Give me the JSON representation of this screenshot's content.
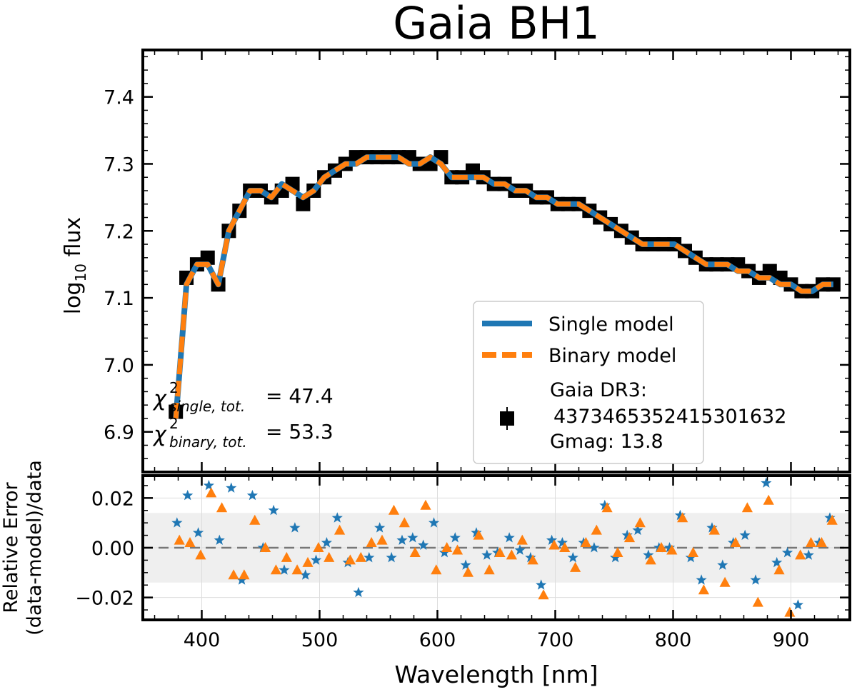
{
  "chart_data": [
    {
      "type": "line",
      "title": "Gaia BH1",
      "ylabel_main": "log",
      "ylabel_sub": "10",
      "ylabel_rest": " flux",
      "xlim": [
        350,
        950
      ],
      "ylim": [
        6.84,
        7.47
      ],
      "yticks": [
        6.9,
        7.0,
        7.1,
        7.2,
        7.3,
        7.4
      ],
      "ytick_labels": [
        "6.9",
        "7.0",
        "7.1",
        "7.2",
        "7.3",
        "7.4"
      ],
      "xticks": [
        400,
        500,
        600,
        700,
        800,
        900
      ],
      "legend_position": "lower right",
      "legend": {
        "single": "Single model",
        "binary": "Binary model",
        "data_line1": "Gaia DR3:",
        "data_line2": "4373465352415301632",
        "data_line3": "Gmag: 13.8"
      },
      "annotations": {
        "chi_single_sub": "single, tot.",
        "chi_single_val": "= 47.4",
        "chi_binary_sub": "binary, tot.",
        "chi_binary_val": "= 53.3"
      },
      "x": [
        378,
        387,
        396,
        405,
        414,
        423,
        432,
        441,
        450,
        459,
        468,
        477,
        486,
        495,
        504,
        513,
        522,
        531,
        540,
        549,
        558,
        567,
        576,
        585,
        594,
        603,
        612,
        621,
        630,
        639,
        648,
        657,
        666,
        675,
        684,
        693,
        702,
        711,
        720,
        729,
        738,
        747,
        756,
        765,
        774,
        783,
        792,
        801,
        810,
        819,
        828,
        837,
        846,
        855,
        864,
        873,
        882,
        891,
        900,
        909,
        918,
        927,
        936
      ],
      "series": [
        {
          "name": "Gaia DR3 data",
          "values": [
            6.93,
            7.13,
            7.15,
            7.16,
            7.12,
            7.2,
            7.23,
            7.26,
            7.26,
            7.25,
            7.26,
            7.27,
            7.24,
            7.26,
            7.28,
            7.29,
            7.3,
            7.31,
            7.31,
            7.31,
            7.31,
            7.31,
            7.31,
            7.3,
            7.3,
            7.31,
            7.28,
            7.28,
            7.29,
            7.28,
            7.27,
            7.27,
            7.26,
            7.26,
            7.25,
            7.25,
            7.24,
            7.24,
            7.24,
            7.23,
            7.22,
            7.21,
            7.2,
            7.19,
            7.18,
            7.18,
            7.18,
            7.18,
            7.17,
            7.16,
            7.15,
            7.15,
            7.15,
            7.15,
            7.14,
            7.13,
            7.14,
            7.13,
            7.12,
            7.11,
            7.11,
            7.12,
            7.12
          ]
        },
        {
          "name": "Single model",
          "values": [
            6.92,
            7.12,
            7.15,
            7.15,
            7.12,
            7.2,
            7.23,
            7.26,
            7.26,
            7.25,
            7.27,
            7.26,
            7.25,
            7.26,
            7.28,
            7.29,
            7.3,
            7.3,
            7.31,
            7.31,
            7.31,
            7.31,
            7.3,
            7.3,
            7.31,
            7.3,
            7.28,
            7.28,
            7.28,
            7.28,
            7.27,
            7.27,
            7.26,
            7.26,
            7.25,
            7.25,
            7.24,
            7.24,
            7.24,
            7.23,
            7.22,
            7.21,
            7.2,
            7.19,
            7.18,
            7.18,
            7.18,
            7.18,
            7.17,
            7.16,
            7.15,
            7.15,
            7.15,
            7.14,
            7.14,
            7.13,
            7.13,
            7.12,
            7.12,
            7.11,
            7.11,
            7.12,
            7.12
          ]
        },
        {
          "name": "Binary model",
          "values": [
            6.92,
            7.12,
            7.15,
            7.15,
            7.12,
            7.2,
            7.23,
            7.26,
            7.26,
            7.25,
            7.27,
            7.26,
            7.25,
            7.26,
            7.28,
            7.29,
            7.3,
            7.3,
            7.31,
            7.31,
            7.31,
            7.31,
            7.3,
            7.3,
            7.31,
            7.3,
            7.28,
            7.28,
            7.28,
            7.28,
            7.27,
            7.27,
            7.26,
            7.26,
            7.25,
            7.25,
            7.24,
            7.24,
            7.24,
            7.23,
            7.22,
            7.21,
            7.2,
            7.19,
            7.18,
            7.18,
            7.18,
            7.18,
            7.17,
            7.16,
            7.15,
            7.15,
            7.15,
            7.14,
            7.14,
            7.13,
            7.13,
            7.12,
            7.12,
            7.11,
            7.11,
            7.12,
            7.12
          ]
        }
      ]
    },
    {
      "type": "scatter",
      "xlabel": "Wavelength [nm]",
      "ylabel_line1": "Relative Error",
      "ylabel_line2": "(data-model)/data",
      "xlim": [
        350,
        950
      ],
      "ylim": [
        -0.029,
        0.029
      ],
      "yticks": [
        -0.02,
        0.0,
        0.02
      ],
      "ytick_labels": [
        "−0.02",
        "0.00",
        "0.02"
      ],
      "xticks": [
        400,
        500,
        600,
        700,
        800,
        900
      ],
      "xtick_labels": [
        "400",
        "500",
        "600",
        "700",
        "800",
        "900"
      ],
      "shaded_band": [
        -0.014,
        0.014
      ],
      "zero_line": 0.0,
      "series": [
        {
          "name": "Single model",
          "marker": "star",
          "x": [
            379,
            388,
            397,
            406,
            415,
            425,
            434,
            443,
            452,
            461,
            470,
            479,
            488,
            497,
            506,
            515,
            524,
            533,
            542,
            551,
            561,
            570,
            579,
            588,
            597,
            606,
            615,
            624,
            633,
            642,
            651,
            661,
            670,
            679,
            688,
            697,
            706,
            715,
            724,
            733,
            742,
            751,
            761,
            770,
            779,
            788,
            797,
            806,
            815,
            824,
            833,
            842,
            851,
            861,
            870,
            879,
            888,
            897,
            906,
            915,
            924,
            933
          ],
          "values": [
            0.01,
            0.021,
            0.006,
            0.025,
            0.003,
            0.024,
            -0.013,
            0.021,
            0.0,
            0.015,
            -0.009,
            0.008,
            -0.011,
            -0.005,
            0.002,
            0.012,
            -0.006,
            -0.018,
            -0.004,
            0.008,
            -0.004,
            0.003,
            0.004,
            0.001,
            0.01,
            -0.002,
            0.004,
            -0.007,
            0.006,
            -0.003,
            -0.002,
            0.004,
            -0.001,
            -0.004,
            -0.015,
            0.003,
            0.002,
            -0.004,
            0.002,
            0.0,
            0.017,
            -0.004,
            0.005,
            0.007,
            -0.003,
            0.0,
            0.0,
            0.013,
            -0.004,
            -0.013,
            0.008,
            -0.007,
            0.002,
            0.005,
            -0.013,
            0.026,
            -0.006,
            -0.002,
            -0.023,
            -0.003,
            0.002,
            0.012
          ]
        },
        {
          "name": "Binary model",
          "marker": "triangle",
          "x": [
            381,
            390,
            399,
            408,
            417,
            427,
            436,
            445,
            454,
            463,
            472,
            481,
            490,
            499,
            508,
            517,
            526,
            535,
            544,
            553,
            563,
            572,
            581,
            590,
            599,
            608,
            617,
            626,
            635,
            644,
            653,
            663,
            672,
            681,
            690,
            699,
            708,
            717,
            726,
            735,
            744,
            753,
            763,
            772,
            781,
            790,
            799,
            808,
            817,
            826,
            835,
            844,
            853,
            863,
            872,
            881,
            890,
            899,
            908,
            917,
            926,
            935
          ],
          "values": [
            0.003,
            0.002,
            -0.003,
            0.022,
            0.016,
            -0.011,
            -0.011,
            0.011,
            0.0,
            -0.009,
            -0.004,
            -0.009,
            -0.006,
            0.0,
            -0.004,
            0.007,
            -0.005,
            -0.004,
            0.002,
            0.003,
            0.015,
            0.01,
            -0.002,
            0.017,
            -0.009,
            0.0,
            -0.001,
            -0.01,
            0.005,
            -0.009,
            -0.002,
            -0.003,
            0.003,
            -0.005,
            -0.019,
            0.001,
            0.0,
            -0.008,
            0.002,
            0.007,
            0.016,
            -0.002,
            0.004,
            0.01,
            -0.005,
            0.0,
            -0.001,
            0.012,
            -0.002,
            -0.017,
            0.007,
            -0.014,
            0.002,
            0.016,
            -0.022,
            0.019,
            -0.009,
            -0.026,
            -0.003,
            0.002,
            0.002,
            0.011
          ]
        }
      ]
    }
  ],
  "colors": {
    "single": "#1f77b4",
    "binary": "#ff7f0e",
    "data": "#000000",
    "band": "#efefef",
    "grid": "#dddddd"
  }
}
